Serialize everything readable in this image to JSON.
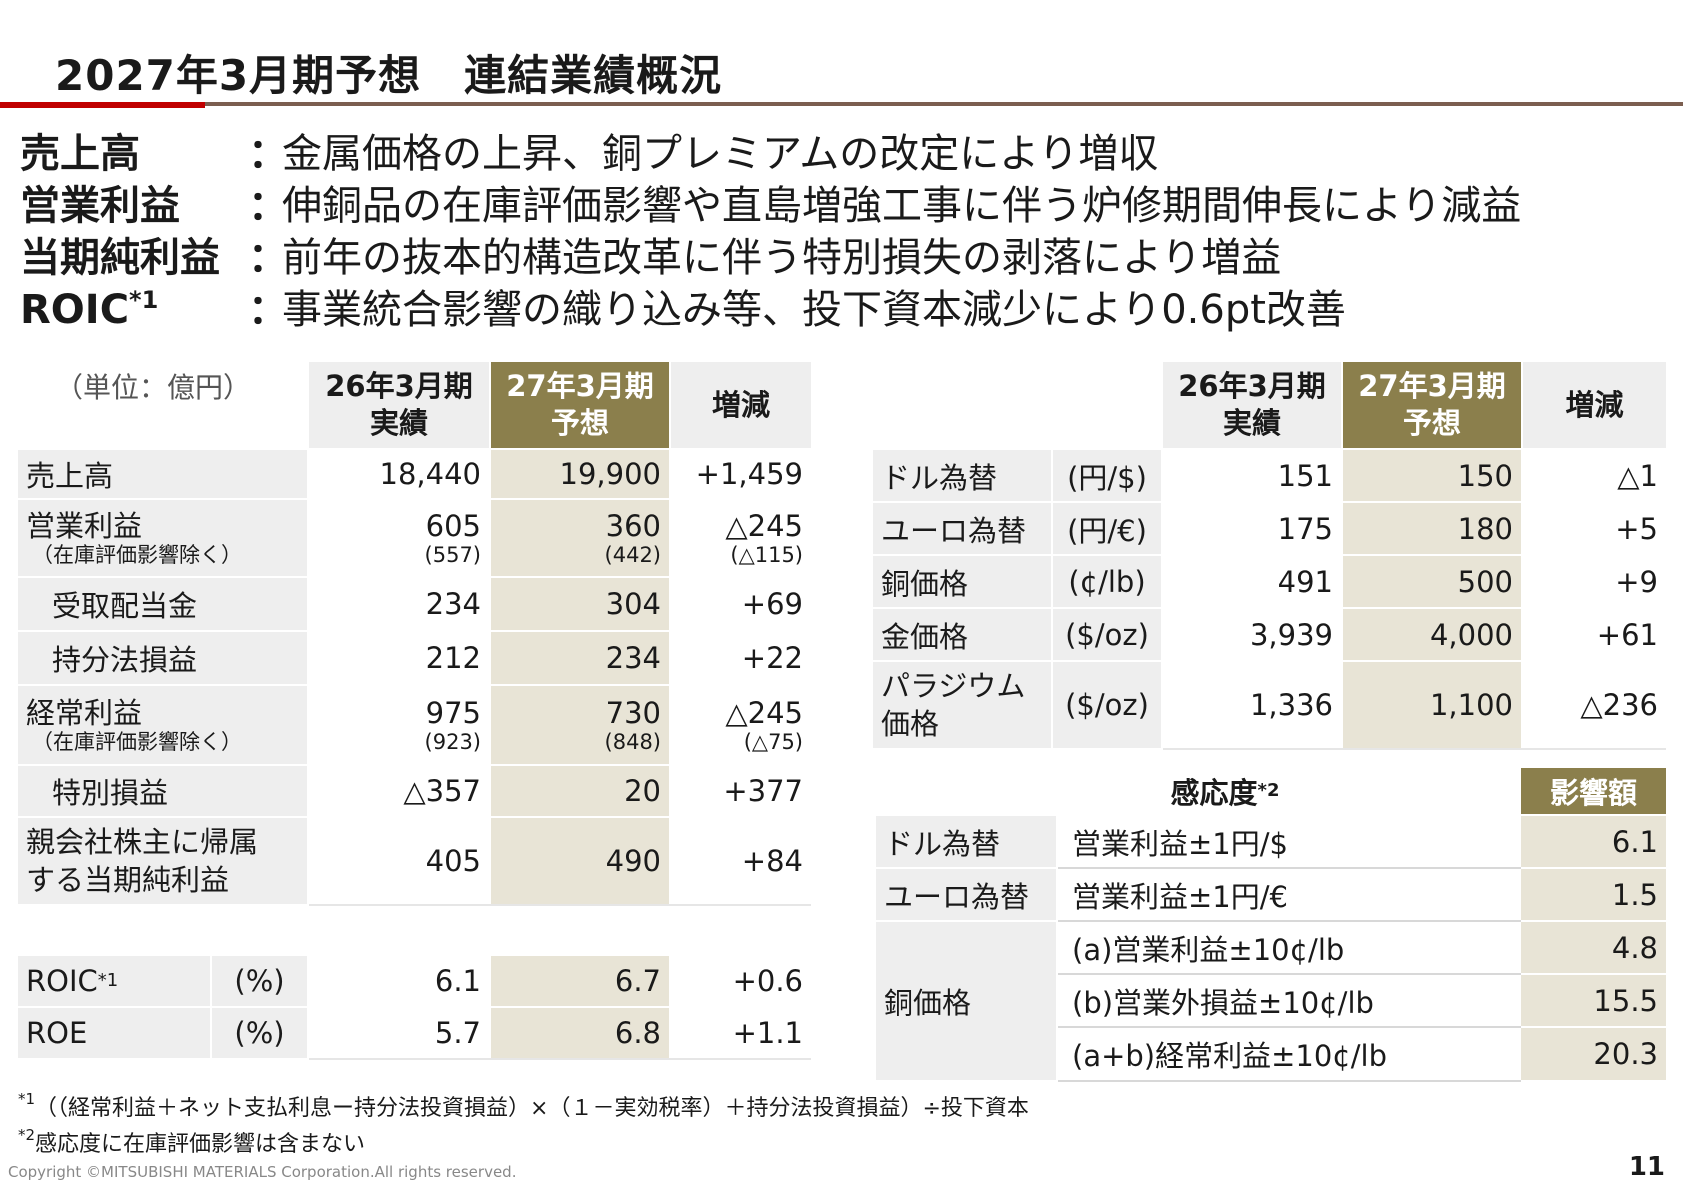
{
  "title": "2027年3月期予想　連結業績概況",
  "summary": [
    {
      "label": "売上高",
      "sup": "",
      "colon": "：",
      "text": "金属価格の上昇、銅プレミアムの改定により増収"
    },
    {
      "label": "営業利益",
      "sup": "",
      "colon": "：",
      "text": "伸銅品の在庫評価影響や直島増強工事に伴う炉修期間伸長により減益"
    },
    {
      "label": "当期純利益",
      "sup": "",
      "colon": "：",
      "text": "前年の抜本的構造改革に伴う特別損失の剥落により増益"
    },
    {
      "label": "ROIC",
      "sup": "*1",
      "colon": "：",
      "text": "事業統合影響の織り込み等、投下資本減少により0.6pt改善"
    }
  ],
  "left_table": {
    "unit": "（単位：億円）",
    "headers": {
      "prev_line1": "26年3月期",
      "prev_line2": "実績",
      "fcst_line1": "27年3月期",
      "fcst_line2": "予想",
      "diff": "増減"
    },
    "rows": [
      {
        "label": "売上高",
        "prev": "18,440",
        "fcst": "19,900",
        "diff": "+1,459"
      },
      {
        "label": "営業利益",
        "sublabel": "（在庫評価影響除く）",
        "prev": "605",
        "prev_sub": "(557)",
        "fcst": "360",
        "fcst_sub": "(442)",
        "diff": "△245",
        "diff_sub": "(△115)"
      },
      {
        "label": "受取配当金",
        "prev": "234",
        "fcst": "304",
        "diff": "+69"
      },
      {
        "label": "持分法損益",
        "prev": "212",
        "fcst": "234",
        "diff": "+22"
      },
      {
        "label": "経常利益",
        "sublabel": "（在庫評価影響除く）",
        "prev": "975",
        "prev_sub": "(923)",
        "fcst": "730",
        "fcst_sub": "(848)",
        "diff": "△245",
        "diff_sub": "(△75)"
      },
      {
        "label": "特別損益",
        "prev": "△357",
        "fcst": "20",
        "diff": "+377"
      },
      {
        "label_line1": "親会社株主に帰属",
        "label_line2": "する当期純利益",
        "prev": "405",
        "fcst": "490",
        "diff": "+84"
      }
    ],
    "ratios": [
      {
        "label": "ROIC",
        "sup": "*1",
        "unit": "(%)",
        "prev": "6.1",
        "fcst": "6.7",
        "diff": "+0.6"
      },
      {
        "label": "ROE",
        "sup": "",
        "unit": "(%)",
        "prev": "5.7",
        "fcst": "6.8",
        "diff": "+1.1"
      }
    ]
  },
  "right_table": {
    "headers": {
      "prev_line1": "26年3月期",
      "prev_line2": "実績",
      "fcst_line1": "27年3月期",
      "fcst_line2": "予想",
      "diff": "増減"
    },
    "rows": [
      {
        "label": "ドル為替",
        "unit": "(円/$)",
        "prev": "151",
        "fcst": "150",
        "diff": "△1"
      },
      {
        "label": "ユーロ為替",
        "unit": "(円/€)",
        "prev": "175",
        "fcst": "180",
        "diff": "+5"
      },
      {
        "label": "銅価格",
        "unit": "(¢/lb)",
        "prev": "491",
        "fcst": "500",
        "diff": "+9"
      },
      {
        "label": "金価格",
        "unit": "($/oz)",
        "prev": "3,939",
        "fcst": "4,000",
        "diff": "+61"
      },
      {
        "label_line1": "パラジウム",
        "label_line2": "価格",
        "unit": "($/oz)",
        "prev": "1,336",
        "fcst": "1,100",
        "diff": "△236"
      }
    ]
  },
  "sensitivity": {
    "title": "感応度",
    "title_sup": "*2",
    "impact_header": "影響額",
    "rows": [
      {
        "group": "ドル為替",
        "item": "営業利益±1円/$",
        "value": "6.1"
      },
      {
        "group": "ユーロ為替",
        "item": "営業利益±1円/€",
        "value": "1.5"
      },
      {
        "group": "銅価格",
        "item": "(a)営業利益±10¢/lb",
        "value": "4.8"
      },
      {
        "group": "",
        "item": "(b)営業外損益±10¢/lb",
        "value": "15.5"
      },
      {
        "group": "",
        "item": "(a+b)経常利益±10¢/lb",
        "value": "20.3"
      }
    ]
  },
  "footnotes": {
    "fn1_mark": "*1",
    "fn1_text": "（（経常利益＋ネット支払利息ー持分法投資損益）×（１－実効税率）＋持分法投資損益）÷投下資本",
    "fn2_mark": "*2",
    "fn2_text": "感応度に在庫評価影響は含まない"
  },
  "copyright": "Copyright ©MITSUBISHI MATERIALS Corporation.All rights reserved.",
  "page_number": "11",
  "colors": {
    "accent_red": "#c00000",
    "rule_brown": "#7b5e50",
    "olive": "#8b7f4c",
    "beige": "#e8e4d6",
    "gray": "#eeeeee"
  }
}
